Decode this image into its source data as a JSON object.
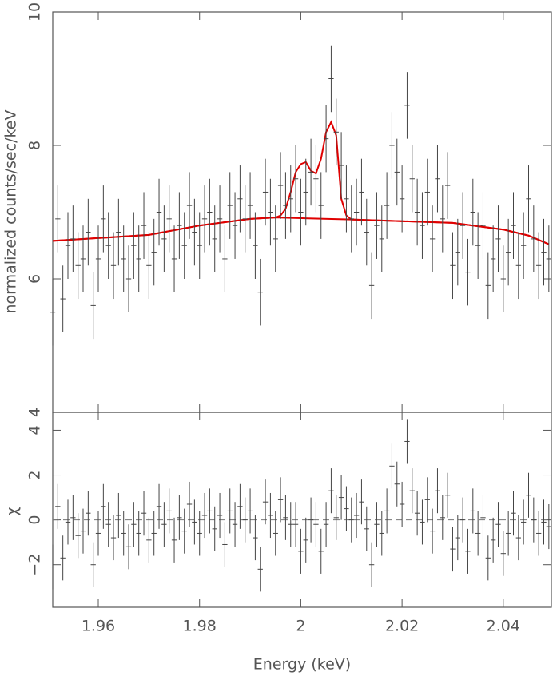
{
  "chart_data": [
    {
      "type": "errorbar",
      "ylabel": "normalized counts/sec/keV",
      "xlim": [
        1.951,
        2.0495
      ],
      "ylim": [
        4,
        10
      ],
      "yticks": [
        4,
        6,
        8,
        10
      ],
      "series": [
        {
          "color": "#444444",
          "error": 0.5,
          "x": [
            1.951,
            1.952,
            1.953,
            1.954,
            1.955,
            1.956,
            1.957,
            1.958,
            1.959,
            1.96,
            1.961,
            1.962,
            1.963,
            1.964,
            1.965,
            1.966,
            1.967,
            1.968,
            1.969,
            1.97,
            1.971,
            1.972,
            1.973,
            1.974,
            1.975,
            1.976,
            1.977,
            1.978,
            1.979,
            1.98,
            1.981,
            1.982,
            1.983,
            1.984,
            1.985,
            1.986,
            1.987,
            1.988,
            1.989,
            1.99,
            1.991,
            1.992,
            1.993,
            1.994,
            1.995,
            1.996,
            1.997,
            1.998,
            1.999,
            2.0,
            2.001,
            2.002,
            2.003,
            2.004,
            2.005,
            2.006,
            2.007,
            2.008,
            2.009,
            2.01,
            2.011,
            2.012,
            2.013,
            2.014,
            2.015,
            2.016,
            2.017,
            2.018,
            2.019,
            2.02,
            2.021,
            2.022,
            2.023,
            2.024,
            2.025,
            2.026,
            2.027,
            2.028,
            2.029,
            2.03,
            2.031,
            2.032,
            2.033,
            2.034,
            2.035,
            2.036,
            2.037,
            2.038,
            2.039,
            2.04,
            2.041,
            2.042,
            2.043,
            2.044,
            2.045,
            2.046,
            2.047,
            2.048,
            2.049
          ],
          "values": [
            5.5,
            6.9,
            5.7,
            6.5,
            6.6,
            6.2,
            6.3,
            6.7,
            5.6,
            6.3,
            6.9,
            6.5,
            6.2,
            6.7,
            6.3,
            6.0,
            6.5,
            6.3,
            6.8,
            6.2,
            6.4,
            7.0,
            6.6,
            6.9,
            6.3,
            6.8,
            6.5,
            7.1,
            6.7,
            6.5,
            6.9,
            7.0,
            6.6,
            6.9,
            6.3,
            7.1,
            6.8,
            7.2,
            6.9,
            7.1,
            6.5,
            5.8,
            7.3,
            7.0,
            6.6,
            7.4,
            7.1,
            7.2,
            7.5,
            7.0,
            7.3,
            7.6,
            7.5,
            7.1,
            8.1,
            9.0,
            8.2,
            7.7,
            7.2,
            6.9,
            7.0,
            7.3,
            6.7,
            5.9,
            6.8,
            6.6,
            7.1,
            8.0,
            7.6,
            7.2,
            8.6,
            7.5,
            7.0,
            6.8,
            7.3,
            6.6,
            7.5,
            6.9,
            7.4,
            6.2,
            6.4,
            6.8,
            6.1,
            7.0,
            6.5,
            6.8,
            5.9,
            6.3,
            6.6,
            6.0,
            6.4,
            6.8,
            6.2,
            6.5,
            7.2,
            6.6,
            6.2,
            6.4,
            6.3
          ]
        }
      ],
      "model": [
        {
          "color": "#e00000",
          "x": [
            1.951,
            1.97,
            1.98,
            1.99,
            1.995,
            1.996,
            1.997,
            1.998,
            1.999,
            2.0,
            2.001,
            2.002,
            2.003,
            2.004,
            2.005,
            2.006,
            2.007,
            2.008,
            2.009,
            2.01,
            2.03,
            2.04,
            2.045,
            2.049
          ],
          "values": [
            6.57,
            6.66,
            6.8,
            6.9,
            6.92,
            6.95,
            7.05,
            7.3,
            7.6,
            7.72,
            7.75,
            7.62,
            7.58,
            7.8,
            8.2,
            8.35,
            8.15,
            7.2,
            6.95,
            6.89,
            6.84,
            6.74,
            6.65,
            6.52
          ]
        },
        {
          "color": "#e00000",
          "x": [
            1.951,
            1.97,
            1.98,
            1.99,
            1.995,
            2.01,
            2.03,
            2.04,
            2.045,
            2.049
          ],
          "values": [
            6.57,
            6.66,
            6.8,
            6.9,
            6.92,
            6.89,
            6.84,
            6.74,
            6.65,
            6.52
          ]
        }
      ]
    },
    {
      "type": "errorbar",
      "ylabel": "χ",
      "xlabel": "Energy (keV)",
      "xlim": [
        1.951,
        2.0495
      ],
      "xticks": [
        1.96,
        1.98,
        2,
        2.02,
        2.04
      ],
      "ylim": [
        -3.9,
        4.8
      ],
      "yticks": [
        {
          "value": -2,
          "label": "−2"
        },
        0,
        2,
        4
      ],
      "series": [
        {
          "color": "#444444",
          "error": 1,
          "x": [
            1.951,
            1.952,
            1.953,
            1.954,
            1.955,
            1.956,
            1.957,
            1.958,
            1.959,
            1.96,
            1.961,
            1.962,
            1.963,
            1.964,
            1.965,
            1.966,
            1.967,
            1.968,
            1.969,
            1.97,
            1.971,
            1.972,
            1.973,
            1.974,
            1.975,
            1.976,
            1.977,
            1.978,
            1.979,
            1.98,
            1.981,
            1.982,
            1.983,
            1.984,
            1.985,
            1.986,
            1.987,
            1.988,
            1.989,
            1.99,
            1.991,
            1.992,
            1.993,
            1.994,
            1.995,
            1.996,
            1.997,
            1.998,
            1.999,
            2.0,
            2.001,
            2.002,
            2.003,
            2.004,
            2.005,
            2.006,
            2.007,
            2.008,
            2.009,
            2.01,
            2.011,
            2.012,
            2.013,
            2.014,
            2.015,
            2.016,
            2.017,
            2.018,
            2.019,
            2.02,
            2.021,
            2.022,
            2.023,
            2.024,
            2.025,
            2.026,
            2.027,
            2.028,
            2.029,
            2.03,
            2.031,
            2.032,
            2.033,
            2.034,
            2.035,
            2.036,
            2.037,
            2.038,
            2.039,
            2.04,
            2.041,
            2.042,
            2.043,
            2.044,
            2.045,
            2.046,
            2.047,
            2.048,
            2.049
          ],
          "values": [
            -2.1,
            0.6,
            -1.7,
            -0.1,
            0.1,
            -0.7,
            -0.5,
            0.3,
            -2.0,
            -0.6,
            0.6,
            -0.2,
            -0.8,
            0.2,
            -0.6,
            -1.2,
            -0.2,
            -0.6,
            0.3,
            -0.9,
            -0.6,
            0.6,
            -0.2,
            0.4,
            -0.9,
            0.1,
            -0.5,
            0.7,
            -0.1,
            -0.6,
            0.2,
            0.4,
            -0.4,
            0.2,
            -1.1,
            0.4,
            -0.2,
            0.6,
            0.0,
            0.4,
            -0.8,
            -2.2,
            0.8,
            0.2,
            -0.6,
            0.9,
            0.1,
            -0.2,
            -0.2,
            -1.4,
            -0.9,
            0.0,
            -0.2,
            -1.4,
            -0.2,
            1.3,
            0.1,
            1.0,
            0.5,
            0.0,
            0.2,
            0.8,
            -0.4,
            -2.0,
            -0.2,
            -0.6,
            0.4,
            2.4,
            1.6,
            0.7,
            3.5,
            1.3,
            0.3,
            -0.1,
            0.9,
            -0.5,
            1.3,
            0.1,
            1.1,
            -1.3,
            -0.8,
            0.0,
            -1.4,
            0.4,
            -0.6,
            0.1,
            -1.7,
            -0.9,
            -0.2,
            -1.5,
            -0.6,
            0.3,
            -0.8,
            -0.1,
            1.1,
            0.0,
            -0.6,
            -0.1,
            -0.3
          ]
        }
      ]
    }
  ]
}
